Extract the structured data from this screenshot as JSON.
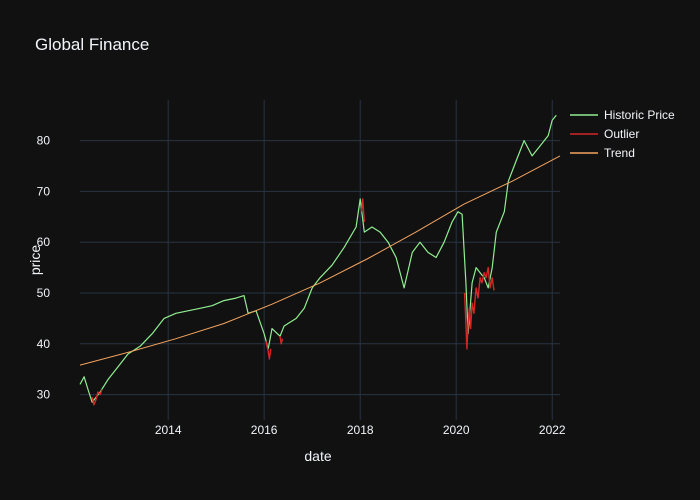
{
  "chart_data": {
    "type": "line",
    "title": "Global Finance",
    "xlabel": "date",
    "ylabel": "price",
    "x_axis_type": "date",
    "xlim": [
      "2012-03-01",
      "2022-03-01"
    ],
    "ylim": [
      25,
      88
    ],
    "x_ticks": [
      "2014",
      "2016",
      "2018",
      "2020",
      "2022"
    ],
    "y_ticks": [
      30,
      40,
      50,
      60,
      70,
      80
    ],
    "grid": true,
    "legend_position": "top-right",
    "series": [
      {
        "name": "Historic Price",
        "color": "#90ee90",
        "points": [
          [
            "2012-03-01",
            32
          ],
          [
            "2012-04-01",
            33.5
          ],
          [
            "2012-05-01",
            31
          ],
          [
            "2012-06-01",
            28.5
          ],
          [
            "2012-08-01",
            30.5
          ],
          [
            "2012-10-01",
            33
          ],
          [
            "2012-12-01",
            35
          ],
          [
            "2013-03-01",
            38
          ],
          [
            "2013-06-01",
            39.5
          ],
          [
            "2013-09-01",
            42
          ],
          [
            "2013-12-01",
            45
          ],
          [
            "2014-03-01",
            46
          ],
          [
            "2014-06-01",
            46.5
          ],
          [
            "2014-09-01",
            47
          ],
          [
            "2014-12-01",
            47.5
          ],
          [
            "2015-03-01",
            48.5
          ],
          [
            "2015-06-01",
            49
          ],
          [
            "2015-08-01",
            49.5
          ],
          [
            "2015-09-01",
            46
          ],
          [
            "2015-11-01",
            46.5
          ],
          [
            "2016-01-01",
            42
          ],
          [
            "2016-02-01",
            39
          ],
          [
            "2016-03-01",
            43
          ],
          [
            "2016-05-01",
            41.5
          ],
          [
            "2016-06-01",
            43.5
          ],
          [
            "2016-09-01",
            45
          ],
          [
            "2016-11-01",
            47
          ],
          [
            "2017-01-01",
            51
          ],
          [
            "2017-03-01",
            53
          ],
          [
            "2017-06-01",
            55.5
          ],
          [
            "2017-09-01",
            59
          ],
          [
            "2017-12-01",
            63
          ],
          [
            "2018-01-01",
            68.5
          ],
          [
            "2018-02-01",
            62
          ],
          [
            "2018-04-01",
            63
          ],
          [
            "2018-06-01",
            62
          ],
          [
            "2018-08-01",
            60
          ],
          [
            "2018-10-01",
            57
          ],
          [
            "2018-12-01",
            51
          ],
          [
            "2019-02-01",
            58
          ],
          [
            "2019-04-01",
            60
          ],
          [
            "2019-06-01",
            58
          ],
          [
            "2019-08-01",
            57
          ],
          [
            "2019-10-01",
            60
          ],
          [
            "2019-12-01",
            64
          ],
          [
            "2020-01-15",
            66
          ],
          [
            "2020-02-15",
            65.5
          ],
          [
            "2020-03-15",
            52
          ],
          [
            "2020-04-01",
            42
          ],
          [
            "2020-05-01",
            52
          ],
          [
            "2020-06-01",
            55
          ],
          [
            "2020-07-01",
            54
          ],
          [
            "2020-08-01",
            53
          ],
          [
            "2020-09-01",
            51
          ],
          [
            "2020-10-01",
            55
          ],
          [
            "2020-11-01",
            62
          ],
          [
            "2021-01-01",
            66
          ],
          [
            "2021-02-01",
            72
          ],
          [
            "2021-04-01",
            76
          ],
          [
            "2021-06-01",
            80
          ],
          [
            "2021-08-01",
            77
          ],
          [
            "2021-10-01",
            79
          ],
          [
            "2021-12-01",
            81
          ],
          [
            "2022-01-01",
            84
          ],
          [
            "2022-02-01",
            85
          ]
        ]
      },
      {
        "name": "Outlier",
        "color": "#d62728",
        "segments": [
          [
            [
              "2012-06-01",
              29.5
            ],
            [
              "2012-06-15",
              28
            ],
            [
              "2012-07-01",
              29
            ],
            [
              "2012-07-15",
              30.5
            ],
            [
              "2012-08-01",
              30
            ],
            [
              "2012-08-15",
              31
            ]
          ],
          [
            [
              "2016-01-15",
              40.5
            ],
            [
              "2016-02-01",
              38.5
            ],
            [
              "2016-02-10",
              37
            ],
            [
              "2016-02-20",
              39
            ]
          ],
          [
            [
              "2016-05-01",
              41.5
            ],
            [
              "2016-05-10",
              40
            ],
            [
              "2016-05-20",
              41
            ]
          ],
          [
            [
              "2018-01-10",
              66
            ],
            [
              "2018-01-20",
              68.5
            ],
            [
              "2018-02-01",
              64
            ]
          ],
          [
            [
              "2020-03-05",
              50
            ],
            [
              "2020-03-15",
              44
            ],
            [
              "2020-03-23",
              39
            ],
            [
              "2020-04-01",
              44
            ],
            [
              "2020-04-10",
              47
            ],
            [
              "2020-04-20",
              43
            ],
            [
              "2020-05-01",
              48
            ],
            [
              "2020-05-15",
              46
            ],
            [
              "2020-06-01",
              51
            ],
            [
              "2020-06-15",
              49
            ],
            [
              "2020-07-01",
              53
            ],
            [
              "2020-07-15",
              52
            ],
            [
              "2020-08-01",
              54
            ],
            [
              "2020-08-15",
              53
            ],
            [
              "2020-09-01",
              55
            ],
            [
              "2020-09-15",
              51
            ],
            [
              "2020-10-01",
              53
            ],
            [
              "2020-10-15",
              50.5
            ]
          ]
        ]
      },
      {
        "name": "Trend",
        "color": "#f4a460",
        "points": [
          [
            "2012-03-01",
            35.8
          ],
          [
            "2013-03-01",
            38.3
          ],
          [
            "2014-03-01",
            41
          ],
          [
            "2015-03-01",
            44
          ],
          [
            "2016-03-01",
            47.8
          ],
          [
            "2017-03-01",
            52
          ],
          [
            "2018-03-01",
            56.8
          ],
          [
            "2019-03-01",
            62
          ],
          [
            "2020-03-01",
            67.5
          ],
          [
            "2021-03-01",
            72
          ],
          [
            "2022-03-01",
            77
          ]
        ]
      }
    ]
  }
}
